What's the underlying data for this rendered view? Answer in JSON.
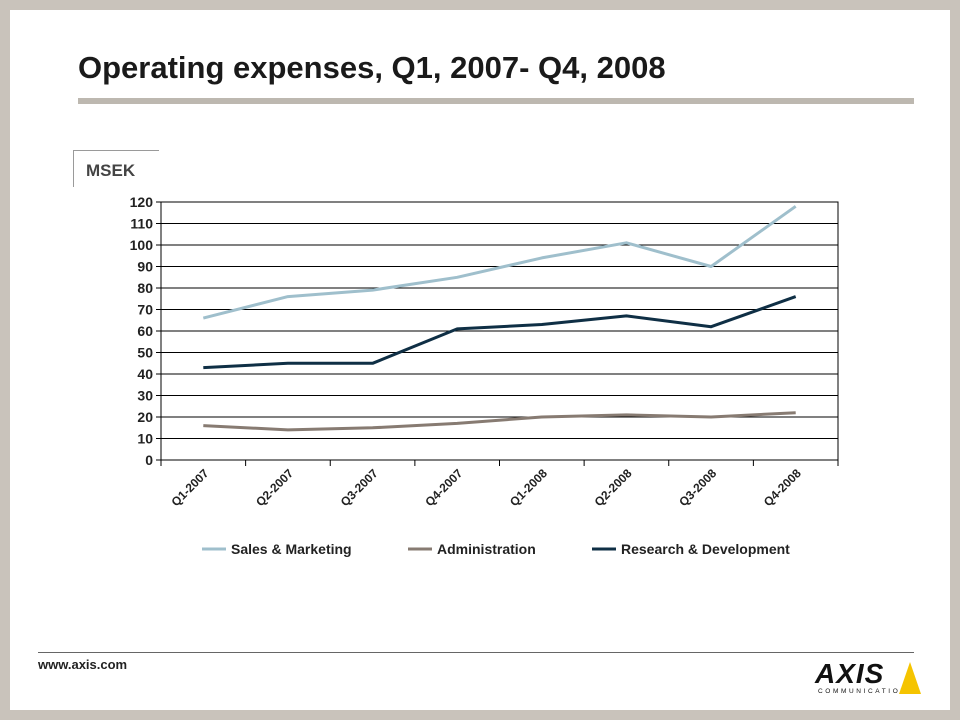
{
  "slide": {
    "title": "Operating expenses, Q1, 2007- Q4, 2008",
    "unit_label": "MSEK",
    "footer_url": "www.axis.com",
    "logo": {
      "text": "AXIS",
      "subtext": "COMMUNICATIONS",
      "accent_color": "#f5c400"
    }
  },
  "chart_data": {
    "type": "line",
    "categories": [
      "Q1-2007",
      "Q2-2007",
      "Q3-2007",
      "Q4-2007",
      "Q1-2008",
      "Q2-2008",
      "Q3-2008",
      "Q4-2008"
    ],
    "ylim": [
      0,
      120
    ],
    "yticks": [
      0,
      10,
      20,
      30,
      40,
      50,
      60,
      70,
      80,
      90,
      100,
      110,
      120
    ],
    "grid": true,
    "legend_position": "bottom",
    "series": [
      {
        "name": "Sales & Marketing",
        "color": "#9fbfcc",
        "values": [
          66,
          76,
          79,
          85,
          94,
          101,
          90,
          118
        ]
      },
      {
        "name": "Administration",
        "color": "#877b72",
        "values": [
          16,
          14,
          15,
          17,
          20,
          21,
          20,
          22
        ]
      },
      {
        "name": "Research & Development",
        "color": "#0f2f45",
        "values": [
          43,
          45,
          45,
          61,
          63,
          67,
          62,
          76
        ]
      }
    ]
  }
}
